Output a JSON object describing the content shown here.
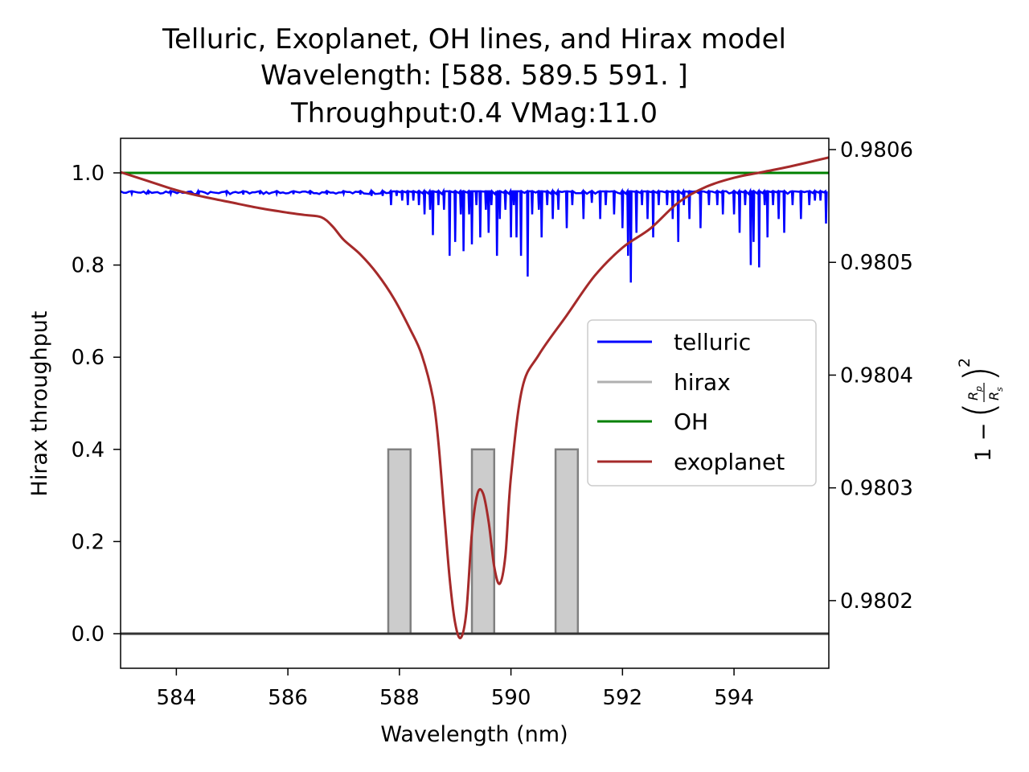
{
  "chart_data": {
    "type": "line",
    "title_lines": [
      "Telluric, Exoplanet, OH lines, and Hirax model",
      "Wavelength: [588.  589.5 591. ]",
      "Throughput:0.4 VMag:11.0"
    ],
    "xlabel": "Wavelength (nm)",
    "ylabel": "Hirax throughput",
    "ylabel_right": "1 − (Rp/Rs)²",
    "xlim": [
      583.0,
      595.7
    ],
    "ylim": [
      -0.075,
      1.075
    ],
    "ylim_right": [
      0.98014,
      0.98061
    ],
    "x_ticks": [
      584,
      586,
      588,
      590,
      592,
      594
    ],
    "x_tick_labels": [
      "584",
      "586",
      "588",
      "590",
      "592",
      "594"
    ],
    "y_ticks": [
      0.0,
      0.2,
      0.4,
      0.6,
      0.8,
      1.0
    ],
    "y_tick_labels": [
      "0.0",
      "0.2",
      "0.4",
      "0.6",
      "0.8",
      "1.0"
    ],
    "y_right_ticks": [
      0.9802,
      0.9803,
      0.9804,
      0.9805,
      0.9806
    ],
    "y_right_tick_labels": [
      "0.9802",
      "0.9803",
      "0.9804",
      "0.9805",
      "0.9806"
    ],
    "legend_position": "center-right",
    "series": [
      {
        "name": "telluric",
        "color": "#0000ff",
        "axis": "left",
        "baseline": 0.96,
        "absorption_lines": [
          [
            583.2,
            0.955
          ],
          [
            583.5,
            0.954
          ],
          [
            583.9,
            0.955
          ],
          [
            584.4,
            0.953
          ],
          [
            584.9,
            0.955
          ],
          [
            585.2,
            0.953
          ],
          [
            585.5,
            0.954
          ],
          [
            585.8,
            0.955
          ],
          [
            586.1,
            0.954
          ],
          [
            586.4,
            0.953
          ],
          [
            586.7,
            0.953
          ],
          [
            587.0,
            0.955
          ],
          [
            587.3,
            0.953
          ],
          [
            587.5,
            0.95
          ],
          [
            587.7,
            0.95
          ],
          [
            587.85,
            0.93
          ],
          [
            587.95,
            0.95
          ],
          [
            588.05,
            0.94
          ],
          [
            588.15,
            0.93
          ],
          [
            588.25,
            0.94
          ],
          [
            588.35,
            0.93
          ],
          [
            588.45,
            0.91
          ],
          [
            588.55,
            0.92
          ],
          [
            588.6,
            0.865
          ],
          [
            588.7,
            0.93
          ],
          [
            588.8,
            0.92
          ],
          [
            588.9,
            0.82
          ],
          [
            589.0,
            0.85
          ],
          [
            589.1,
            0.91
          ],
          [
            589.15,
            0.83
          ],
          [
            589.25,
            0.91
          ],
          [
            589.3,
            0.845
          ],
          [
            589.38,
            0.93
          ],
          [
            589.45,
            0.86
          ],
          [
            589.55,
            0.92
          ],
          [
            589.6,
            0.87
          ],
          [
            589.65,
            0.93
          ],
          [
            589.75,
            0.82
          ],
          [
            589.8,
            0.9
          ],
          [
            589.9,
            0.92
          ],
          [
            590.0,
            0.86
          ],
          [
            590.05,
            0.93
          ],
          [
            590.1,
            0.86
          ],
          [
            590.18,
            0.82
          ],
          [
            590.3,
            0.775
          ],
          [
            590.38,
            0.91
          ],
          [
            590.5,
            0.92
          ],
          [
            590.55,
            0.86
          ],
          [
            590.65,
            0.93
          ],
          [
            590.75,
            0.9
          ],
          [
            590.85,
            0.92
          ],
          [
            591.0,
            0.88
          ],
          [
            591.1,
            0.93
          ],
          [
            591.3,
            0.9
          ],
          [
            591.45,
            0.935
          ],
          [
            591.6,
            0.9
          ],
          [
            591.7,
            0.93
          ],
          [
            591.85,
            0.91
          ],
          [
            592.0,
            0.88
          ],
          [
            592.1,
            0.82
          ],
          [
            592.15,
            0.762
          ],
          [
            592.25,
            0.87
          ],
          [
            592.35,
            0.93
          ],
          [
            592.45,
            0.9
          ],
          [
            592.55,
            0.86
          ],
          [
            592.65,
            0.93
          ],
          [
            592.8,
            0.93
          ],
          [
            592.9,
            0.9
          ],
          [
            593.0,
            0.85
          ],
          [
            593.1,
            0.93
          ],
          [
            593.2,
            0.9
          ],
          [
            593.4,
            0.88
          ],
          [
            593.55,
            0.93
          ],
          [
            593.7,
            0.93
          ],
          [
            593.8,
            0.91
          ],
          [
            594.0,
            0.91
          ],
          [
            594.1,
            0.87
          ],
          [
            594.2,
            0.93
          ],
          [
            594.3,
            0.8
          ],
          [
            594.35,
            0.85
          ],
          [
            594.45,
            0.795
          ],
          [
            594.55,
            0.93
          ],
          [
            594.6,
            0.86
          ],
          [
            594.7,
            0.93
          ],
          [
            594.8,
            0.9
          ],
          [
            594.9,
            0.87
          ],
          [
            595.05,
            0.93
          ],
          [
            595.2,
            0.9
          ],
          [
            595.35,
            0.93
          ],
          [
            595.45,
            0.94
          ],
          [
            595.55,
            0.94
          ],
          [
            595.65,
            0.89
          ]
        ]
      },
      {
        "name": "hirax",
        "color": "#808080",
        "fill": "#cccccc",
        "axis": "left",
        "throughput": 0.4,
        "bands": [
          [
            587.8,
            588.2
          ],
          [
            589.3,
            589.7
          ],
          [
            590.8,
            591.2
          ]
        ]
      },
      {
        "name": "OH",
        "color": "#008000",
        "axis": "left",
        "value": 1.0
      },
      {
        "name": "exoplanet",
        "color": "#a52a2a",
        "axis": "right",
        "x": [
          583.0,
          583.5,
          584.0,
          584.5,
          585.0,
          585.5,
          586.0,
          586.3,
          586.6,
          586.8,
          587.0,
          587.3,
          587.6,
          587.9,
          588.2,
          588.4,
          588.6,
          588.7,
          588.8,
          588.9,
          589.0,
          589.1,
          589.2,
          589.3,
          589.4,
          589.5,
          589.6,
          589.7,
          589.8,
          589.9,
          590.0,
          590.2,
          590.5,
          591.0,
          591.5,
          592.0,
          592.5,
          593.0,
          593.5,
          594.0,
          594.5,
          595.0,
          595.7
        ],
        "y": [
          0.98058,
          0.980572,
          0.980564,
          0.980558,
          0.980553,
          0.980548,
          0.980544,
          0.980542,
          0.98054,
          0.980532,
          0.98052,
          0.980507,
          0.98049,
          0.980468,
          0.98044,
          0.980418,
          0.98038,
          0.98034,
          0.98028,
          0.98022,
          0.98018,
          0.980167,
          0.98019,
          0.98026,
          0.980295,
          0.980295,
          0.98027,
          0.98023,
          0.980215,
          0.98024,
          0.98031,
          0.980388,
          0.980418,
          0.980453,
          0.980488,
          0.980513,
          0.98053,
          0.980553,
          0.980567,
          0.980575,
          0.98058,
          0.980585,
          0.980593
        ]
      }
    ]
  }
}
